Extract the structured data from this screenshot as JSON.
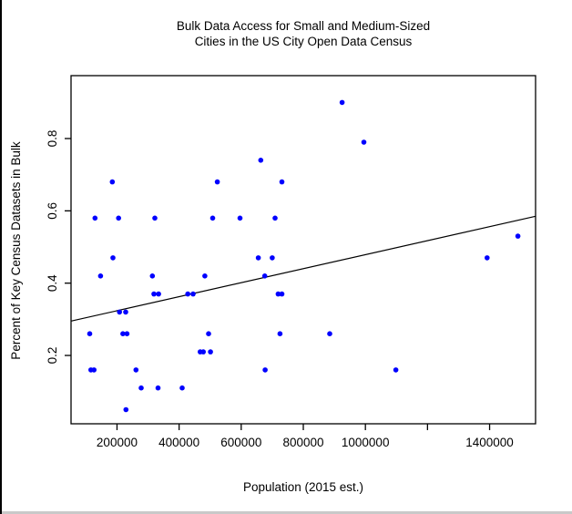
{
  "figure": {
    "title_line1": "Bulk Data Access for Small and Medium-Sized",
    "title_line2": "Cities in the US City Open Data Census",
    "xlabel": "Population (2015 est.)",
    "ylabel": "Percent of Key Census Datasets in Bulk"
  },
  "chart_data": {
    "type": "scatter",
    "title": "Bulk Data Access for Small and Medium-Sized Cities in the US City Open Data Census",
    "xlabel": "Population (2015 est.)",
    "ylabel": "Percent of Key Census Datasets in Bulk",
    "point_color": "#0000ff",
    "axis_color": "#000000",
    "grid": false,
    "legend": null,
    "x_domain": [
      52000,
      1548000
    ],
    "y_domain": [
      0.011,
      0.974
    ],
    "x_ticks": [
      {
        "value": 200000,
        "label": "200000"
      },
      {
        "value": 400000,
        "label": "400000"
      },
      {
        "value": 600000,
        "label": "600000"
      },
      {
        "value": 800000,
        "label": "800000"
      },
      {
        "value": 1000000,
        "label": "1000000"
      },
      {
        "value": 1200000,
        "label": ""
      },
      {
        "value": 1400000,
        "label": "1400000"
      }
    ],
    "y_ticks": [
      {
        "value": 0.2,
        "label": "0.2"
      },
      {
        "value": 0.4,
        "label": "0.4"
      },
      {
        "value": 0.6,
        "label": "0.6"
      },
      {
        "value": 0.8,
        "label": "0.8"
      }
    ],
    "points": [
      [
        925000,
        0.9
      ],
      [
        995000,
        0.79
      ],
      [
        663000,
        0.74
      ],
      [
        185000,
        0.68
      ],
      [
        523000,
        0.68
      ],
      [
        731000,
        0.68
      ],
      [
        129000,
        0.58
      ],
      [
        205000,
        0.58
      ],
      [
        322000,
        0.58
      ],
      [
        508000,
        0.58
      ],
      [
        596000,
        0.58
      ],
      [
        709000,
        0.58
      ],
      [
        1491000,
        0.53
      ],
      [
        187000,
        0.47
      ],
      [
        655000,
        0.47
      ],
      [
        700000,
        0.47
      ],
      [
        1392000,
        0.47
      ],
      [
        147000,
        0.42
      ],
      [
        314000,
        0.42
      ],
      [
        483000,
        0.42
      ],
      [
        676000,
        0.42
      ],
      [
        319000,
        0.37
      ],
      [
        334000,
        0.37
      ],
      [
        428000,
        0.37
      ],
      [
        445000,
        0.37
      ],
      [
        719000,
        0.37
      ],
      [
        731000,
        0.37
      ],
      [
        208000,
        0.32
      ],
      [
        228000,
        0.32
      ],
      [
        112000,
        0.26
      ],
      [
        219000,
        0.26
      ],
      [
        232000,
        0.26
      ],
      [
        495000,
        0.26
      ],
      [
        725000,
        0.26
      ],
      [
        885000,
        0.26
      ],
      [
        468000,
        0.21
      ],
      [
        478000,
        0.21
      ],
      [
        501000,
        0.21
      ],
      [
        116000,
        0.16
      ],
      [
        126000,
        0.16
      ],
      [
        261000,
        0.16
      ],
      [
        677000,
        0.16
      ],
      [
        1098000,
        0.16
      ],
      [
        278000,
        0.11
      ],
      [
        332000,
        0.11
      ],
      [
        410000,
        0.11
      ],
      [
        229000,
        0.05
      ]
    ],
    "trend_line": {
      "x1": 52000,
      "y1": 0.295,
      "x2": 1548000,
      "y2": 0.585
    }
  }
}
